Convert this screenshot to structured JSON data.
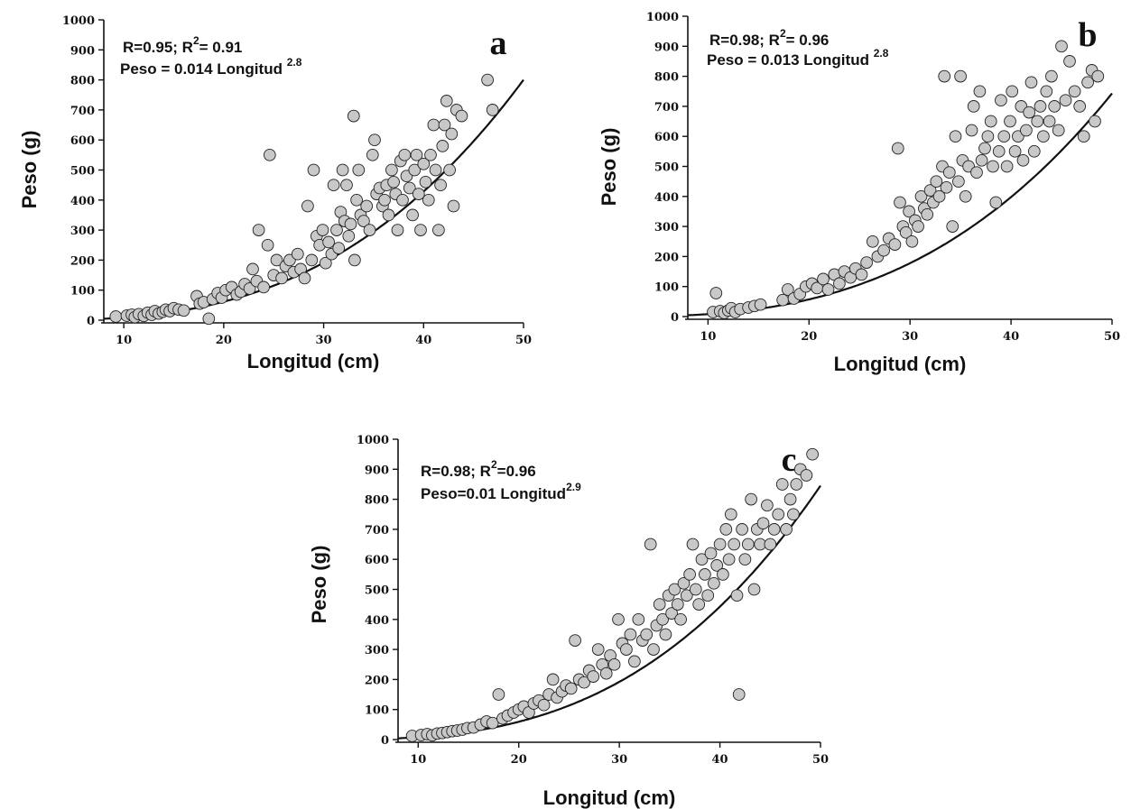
{
  "chart_data": [
    {
      "type": "scatter",
      "panel": "a",
      "xlabel": "Longitud (cm)",
      "ylabel": "Peso (g)",
      "xlim": [
        8,
        50
      ],
      "ylim": [
        0,
        1000
      ],
      "x_ticks": [
        10,
        20,
        30,
        40,
        50
      ],
      "y_ticks": [
        0,
        100,
        200,
        300,
        400,
        500,
        600,
        700,
        800,
        900,
        1000
      ],
      "annotation_line1": {
        "stat": "R=0.95; R",
        "sup": "2",
        "tail": "= 0.91"
      },
      "annotation_line2": {
        "main": "Peso = 0.014 Longitud ",
        "sup": "2.8"
      },
      "fit": {
        "a": 0.014,
        "b": 2.8
      },
      "points": [
        [
          9.2,
          12
        ],
        [
          10.3,
          15
        ],
        [
          10.8,
          18
        ],
        [
          11.1,
          10
        ],
        [
          11.5,
          20
        ],
        [
          12.0,
          14
        ],
        [
          12.4,
          25
        ],
        [
          12.8,
          18
        ],
        [
          13.1,
          30
        ],
        [
          13.5,
          22
        ],
        [
          13.9,
          28
        ],
        [
          14.2,
          35
        ],
        [
          14.6,
          30
        ],
        [
          15.0,
          40
        ],
        [
          15.5,
          35
        ],
        [
          16.0,
          32
        ],
        [
          17.3,
          80
        ],
        [
          17.6,
          55
        ],
        [
          18.0,
          60
        ],
        [
          18.5,
          5
        ],
        [
          18.9,
          70
        ],
        [
          19.4,
          90
        ],
        [
          19.8,
          75
        ],
        [
          20.2,
          100
        ],
        [
          20.8,
          110
        ],
        [
          21.3,
          85
        ],
        [
          21.7,
          95
        ],
        [
          22.1,
          120
        ],
        [
          22.6,
          105
        ],
        [
          22.9,
          170
        ],
        [
          23.3,
          130
        ],
        [
          23.5,
          300
        ],
        [
          24.0,
          110
        ],
        [
          24.4,
          250
        ],
        [
          24.6,
          550
        ],
        [
          25.0,
          150
        ],
        [
          25.3,
          200
        ],
        [
          25.8,
          140
        ],
        [
          26.2,
          180
        ],
        [
          26.6,
          200
        ],
        [
          27.0,
          160
        ],
        [
          27.4,
          220
        ],
        [
          27.7,
          170
        ],
        [
          28.1,
          140
        ],
        [
          28.4,
          380
        ],
        [
          28.8,
          200
        ],
        [
          29.0,
          500
        ],
        [
          29.3,
          280
        ],
        [
          29.6,
          250
        ],
        [
          29.9,
          300
        ],
        [
          30.2,
          190
        ],
        [
          30.5,
          260
        ],
        [
          30.8,
          220
        ],
        [
          31.0,
          450
        ],
        [
          31.3,
          300
        ],
        [
          31.5,
          240
        ],
        [
          31.7,
          360
        ],
        [
          31.9,
          500
        ],
        [
          32.1,
          330
        ],
        [
          32.3,
          450
        ],
        [
          32.5,
          280
        ],
        [
          32.7,
          320
        ],
        [
          33.0,
          680
        ],
        [
          33.1,
          200
        ],
        [
          33.3,
          400
        ],
        [
          33.5,
          500
        ],
        [
          33.7,
          350
        ],
        [
          34.0,
          330
        ],
        [
          34.3,
          380
        ],
        [
          34.6,
          300
        ],
        [
          34.9,
          550
        ],
        [
          35.1,
          600
        ],
        [
          35.3,
          420
        ],
        [
          35.6,
          440
        ],
        [
          35.9,
          380
        ],
        [
          36.1,
          400
        ],
        [
          36.3,
          450
        ],
        [
          36.5,
          350
        ],
        [
          36.8,
          500
        ],
        [
          37.0,
          460
        ],
        [
          37.2,
          420
        ],
        [
          37.4,
          300
        ],
        [
          37.7,
          530
        ],
        [
          37.9,
          400
        ],
        [
          38.1,
          550
        ],
        [
          38.3,
          480
        ],
        [
          38.6,
          440
        ],
        [
          38.9,
          350
        ],
        [
          39.1,
          500
        ],
        [
          39.3,
          550
        ],
        [
          39.5,
          420
        ],
        [
          39.7,
          300
        ],
        [
          40.0,
          520
        ],
        [
          40.2,
          460
        ],
        [
          40.5,
          400
        ],
        [
          40.7,
          550
        ],
        [
          41.0,
          650
        ],
        [
          41.2,
          500
        ],
        [
          41.5,
          300
        ],
        [
          41.7,
          450
        ],
        [
          41.9,
          580
        ],
        [
          42.1,
          650
        ],
        [
          42.3,
          730
        ],
        [
          42.6,
          500
        ],
        [
          42.8,
          620
        ],
        [
          43.0,
          380
        ],
        [
          43.3,
          700
        ],
        [
          43.8,
          680
        ],
        [
          46.4,
          800
        ],
        [
          46.9,
          700
        ]
      ]
    },
    {
      "type": "scatter",
      "panel": "b",
      "xlabel": "Longitud (cm)",
      "ylabel": "Peso (g)",
      "xlim": [
        8,
        50
      ],
      "ylim": [
        0,
        1000
      ],
      "x_ticks": [
        10,
        20,
        30,
        40,
        50
      ],
      "y_ticks": [
        0,
        100,
        200,
        300,
        400,
        500,
        600,
        700,
        800,
        900,
        1000
      ],
      "annotation_line1": {
        "stat": "R=0.98; R",
        "sup": "2",
        "tail": "= 0.96"
      },
      "annotation_line2": {
        "main": "Peso = 0.013 Longitud ",
        "sup": "2.8"
      },
      "fit": {
        "a": 0.013,
        "b": 2.8
      },
      "points": [
        [
          10.5,
          15
        ],
        [
          10.8,
          78
        ],
        [
          11.2,
          18
        ],
        [
          11.6,
          12
        ],
        [
          12.0,
          20
        ],
        [
          12.3,
          28
        ],
        [
          12.7,
          15
        ],
        [
          13.2,
          25
        ],
        [
          14.0,
          30
        ],
        [
          14.6,
          35
        ],
        [
          15.2,
          40
        ],
        [
          17.4,
          55
        ],
        [
          17.9,
          90
        ],
        [
          18.5,
          60
        ],
        [
          19.1,
          75
        ],
        [
          19.7,
          100
        ],
        [
          20.3,
          110
        ],
        [
          20.8,
          95
        ],
        [
          21.4,
          125
        ],
        [
          21.9,
          90
        ],
        [
          22.5,
          140
        ],
        [
          23.0,
          110
        ],
        [
          23.5,
          150
        ],
        [
          24.1,
          130
        ],
        [
          24.6,
          160
        ],
        [
          25.2,
          140
        ],
        [
          25.7,
          180
        ],
        [
          26.3,
          250
        ],
        [
          26.8,
          200
        ],
        [
          27.4,
          220
        ],
        [
          27.9,
          260
        ],
        [
          28.5,
          240
        ],
        [
          28.8,
          560
        ],
        [
          29.0,
          380
        ],
        [
          29.3,
          300
        ],
        [
          29.6,
          280
        ],
        [
          29.9,
          350
        ],
        [
          30.2,
          250
        ],
        [
          30.5,
          320
        ],
        [
          30.8,
          300
        ],
        [
          31.1,
          400
        ],
        [
          31.4,
          360
        ],
        [
          31.7,
          340
        ],
        [
          32.0,
          420
        ],
        [
          32.3,
          380
        ],
        [
          32.6,
          450
        ],
        [
          32.9,
          400
        ],
        [
          33.2,
          500
        ],
        [
          33.4,
          800
        ],
        [
          33.6,
          430
        ],
        [
          33.9,
          480
        ],
        [
          34.2,
          300
        ],
        [
          34.5,
          600
        ],
        [
          34.8,
          450
        ],
        [
          35.0,
          800
        ],
        [
          35.2,
          520
        ],
        [
          35.5,
          400
        ],
        [
          35.8,
          500
        ],
        [
          36.1,
          620
        ],
        [
          36.3,
          700
        ],
        [
          36.6,
          480
        ],
        [
          36.9,
          750
        ],
        [
          37.1,
          520
        ],
        [
          37.4,
          560
        ],
        [
          37.7,
          600
        ],
        [
          38.0,
          650
        ],
        [
          38.2,
          500
        ],
        [
          38.5,
          380
        ],
        [
          38.8,
          550
        ],
        [
          39.0,
          720
        ],
        [
          39.3,
          600
        ],
        [
          39.6,
          500
        ],
        [
          39.9,
          650
        ],
        [
          40.1,
          750
        ],
        [
          40.4,
          550
        ],
        [
          40.7,
          600
        ],
        [
          41.0,
          700
        ],
        [
          41.2,
          520
        ],
        [
          41.5,
          620
        ],
        [
          41.8,
          680
        ],
        [
          42.0,
          780
        ],
        [
          42.3,
          550
        ],
        [
          42.6,
          650
        ],
        [
          42.9,
          700
        ],
        [
          43.2,
          600
        ],
        [
          43.5,
          750
        ],
        [
          43.8,
          650
        ],
        [
          44.0,
          800
        ],
        [
          44.3,
          700
        ],
        [
          44.7,
          620
        ],
        [
          45.0,
          900
        ],
        [
          45.4,
          720
        ],
        [
          45.8,
          850
        ],
        [
          46.3,
          750
        ],
        [
          46.8,
          700
        ],
        [
          47.2,
          600
        ],
        [
          47.6,
          780
        ],
        [
          48.0,
          820
        ],
        [
          48.3,
          650
        ],
        [
          48.6,
          800
        ]
      ]
    },
    {
      "type": "scatter",
      "panel": "c",
      "xlabel": "Longitud (cm)",
      "ylabel": "Peso (g)",
      "xlim": [
        8,
        50
      ],
      "ylim": [
        0,
        1000
      ],
      "x_ticks": [
        10,
        20,
        30,
        40,
        50
      ],
      "y_ticks": [
        0,
        100,
        200,
        300,
        400,
        500,
        600,
        700,
        800,
        900,
        1000
      ],
      "annotation_line1": {
        "stat": "R=0.98; R",
        "sup": "2",
        "tail": "=0.96"
      },
      "annotation_line2": {
        "main": "Peso=0.01 Longitud",
        "sup": "2.9"
      },
      "fit": {
        "a": 0.01,
        "b": 2.9
      },
      "points": [
        [
          9.4,
          12
        ],
        [
          10.3,
          15
        ],
        [
          10.9,
          18
        ],
        [
          11.4,
          14
        ],
        [
          11.9,
          20
        ],
        [
          12.4,
          22
        ],
        [
          12.9,
          25
        ],
        [
          13.4,
          28
        ],
        [
          13.9,
          30
        ],
        [
          14.4,
          33
        ],
        [
          14.9,
          38
        ],
        [
          15.5,
          40
        ],
        [
          16.2,
          50
        ],
        [
          16.8,
          60
        ],
        [
          17.4,
          55
        ],
        [
          18.0,
          150
        ],
        [
          18.4,
          70
        ],
        [
          18.9,
          80
        ],
        [
          19.5,
          90
        ],
        [
          20.0,
          100
        ],
        [
          20.5,
          110
        ],
        [
          21.0,
          90
        ],
        [
          21.5,
          120
        ],
        [
          22.0,
          130
        ],
        [
          22.5,
          115
        ],
        [
          23.0,
          150
        ],
        [
          23.4,
          200
        ],
        [
          23.8,
          140
        ],
        [
          24.3,
          160
        ],
        [
          24.7,
          180
        ],
        [
          25.2,
          170
        ],
        [
          25.6,
          330
        ],
        [
          26.0,
          200
        ],
        [
          26.5,
          190
        ],
        [
          27.0,
          230
        ],
        [
          27.4,
          210
        ],
        [
          27.9,
          300
        ],
        [
          28.3,
          250
        ],
        [
          28.7,
          220
        ],
        [
          29.1,
          280
        ],
        [
          29.5,
          250
        ],
        [
          29.9,
          400
        ],
        [
          30.3,
          320
        ],
        [
          30.7,
          300
        ],
        [
          31.1,
          350
        ],
        [
          31.5,
          260
        ],
        [
          31.9,
          400
        ],
        [
          32.3,
          330
        ],
        [
          32.7,
          350
        ],
        [
          33.1,
          650
        ],
        [
          33.4,
          300
        ],
        [
          33.7,
          380
        ],
        [
          34.0,
          450
        ],
        [
          34.3,
          400
        ],
        [
          34.6,
          350
        ],
        [
          34.9,
          480
        ],
        [
          35.2,
          420
        ],
        [
          35.5,
          500
        ],
        [
          35.8,
          450
        ],
        [
          36.1,
          400
        ],
        [
          36.4,
          520
        ],
        [
          36.7,
          480
        ],
        [
          37.0,
          550
        ],
        [
          37.3,
          650
        ],
        [
          37.6,
          500
        ],
        [
          37.9,
          450
        ],
        [
          38.2,
          600
        ],
        [
          38.5,
          550
        ],
        [
          38.8,
          480
        ],
        [
          39.1,
          620
        ],
        [
          39.4,
          520
        ],
        [
          39.7,
          580
        ],
        [
          40.0,
          650
        ],
        [
          40.3,
          550
        ],
        [
          40.6,
          700
        ],
        [
          40.9,
          600
        ],
        [
          41.1,
          750
        ],
        [
          41.4,
          650
        ],
        [
          41.7,
          480
        ],
        [
          41.9,
          150
        ],
        [
          42.2,
          700
        ],
        [
          42.5,
          600
        ],
        [
          42.8,
          650
        ],
        [
          43.1,
          800
        ],
        [
          43.4,
          500
        ],
        [
          43.7,
          700
        ],
        [
          44.0,
          650
        ],
        [
          44.3,
          720
        ],
        [
          44.7,
          780
        ],
        [
          45.0,
          650
        ],
        [
          45.4,
          700
        ],
        [
          45.8,
          750
        ],
        [
          46.2,
          850
        ],
        [
          46.6,
          700
        ],
        [
          47.0,
          800
        ],
        [
          47.3,
          750
        ],
        [
          47.6,
          850
        ],
        [
          48.0,
          900
        ],
        [
          48.6,
          880
        ],
        [
          49.2,
          950
        ]
      ]
    }
  ]
}
